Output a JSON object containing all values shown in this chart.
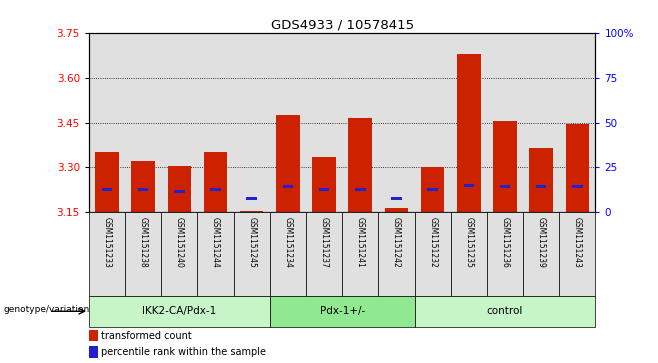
{
  "title": "GDS4933 / 10578415",
  "samples": [
    "GSM1151233",
    "GSM1151238",
    "GSM1151240",
    "GSM1151244",
    "GSM1151245",
    "GSM1151234",
    "GSM1151237",
    "GSM1151241",
    "GSM1151242",
    "GSM1151232",
    "GSM1151235",
    "GSM1151236",
    "GSM1151239",
    "GSM1151243"
  ],
  "red_values": [
    3.35,
    3.32,
    3.305,
    3.35,
    3.155,
    3.475,
    3.335,
    3.465,
    3.165,
    3.3,
    3.68,
    3.455,
    3.365,
    3.445
  ],
  "blue_values": [
    3.225,
    3.225,
    3.22,
    3.225,
    3.195,
    3.235,
    3.225,
    3.225,
    3.195,
    3.225,
    3.24,
    3.235,
    3.235,
    3.235
  ],
  "groups": [
    {
      "label": "IKK2-CA/Pdx-1",
      "start": 0,
      "end": 5
    },
    {
      "label": "Pdx-1+/-",
      "start": 5,
      "end": 9
    },
    {
      "label": "control",
      "start": 9,
      "end": 14
    }
  ],
  "group_colors": [
    "#c8f5c8",
    "#90e890",
    "#c8f5c8"
  ],
  "y_min": 3.15,
  "y_max": 3.75,
  "y_ticks": [
    3.15,
    3.3,
    3.45,
    3.6,
    3.75
  ],
  "y2_ticks": [
    0,
    25,
    50,
    75,
    100
  ],
  "y2_labels": [
    "0",
    "25",
    "50",
    "75",
    "100%"
  ],
  "bar_color": "#cc2200",
  "blue_color": "#2222cc",
  "bar_width": 0.65,
  "bg_color": "#e0e0e0",
  "plot_bg": "#ffffff",
  "genotype_label": "genotype/variation"
}
